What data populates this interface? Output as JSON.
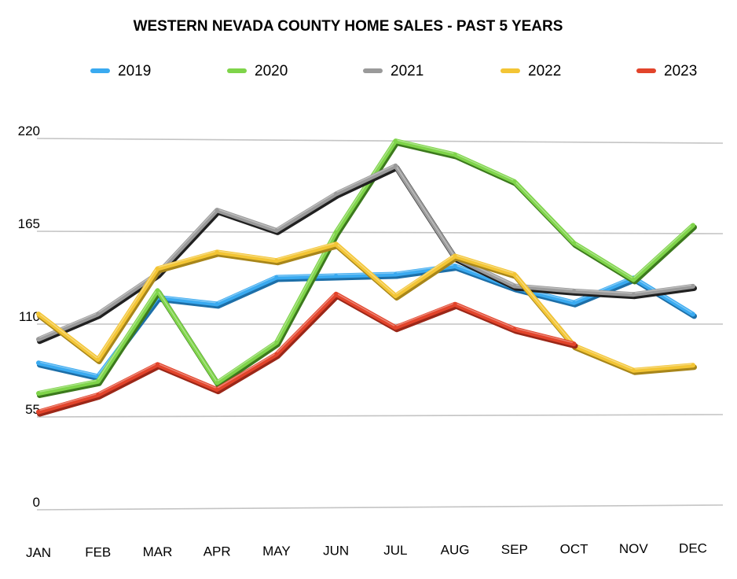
{
  "chart_data": {
    "type": "line",
    "title": "WESTERN NEVADA COUNTY HOME SALES - PAST 5 YEARS",
    "xlabel": "",
    "ylabel": "",
    "categories": [
      "JAN",
      "FEB",
      "MAR",
      "APR",
      "MAY",
      "JUN",
      "JUL",
      "AUG",
      "SEP",
      "OCT",
      "NOV",
      "DEC"
    ],
    "yticks": [
      "0",
      "55",
      "110",
      "165",
      "220"
    ],
    "ylim": [
      0,
      220
    ],
    "grid": true,
    "legend_position": "top",
    "series": [
      {
        "name": "2019",
        "color": "#3aaaf0",
        "values": [
          87,
          79,
          126,
          122,
          138,
          139,
          140,
          145,
          132,
          123,
          138,
          116
        ]
      },
      {
        "name": "2020",
        "color": "#7fd44a",
        "values": [
          69,
          76,
          130,
          75,
          99,
          165,
          220,
          212,
          196,
          159,
          137,
          170
        ]
      },
      {
        "name": "2021",
        "color": "#9a9a9a",
        "values": [
          101,
          116,
          140,
          178,
          166,
          188,
          205,
          150,
          133,
          130,
          128,
          133
        ]
      },
      {
        "name": "2022",
        "color": "#f3c535",
        "values": [
          116,
          89,
          143,
          153,
          148,
          158,
          127,
          151,
          140,
          97,
          82,
          85
        ]
      },
      {
        "name": "2023",
        "color": "#e2442b",
        "values": [
          58,
          68,
          86,
          71,
          92,
          128,
          108,
          122,
          107,
          98,
          null,
          null
        ]
      }
    ]
  }
}
